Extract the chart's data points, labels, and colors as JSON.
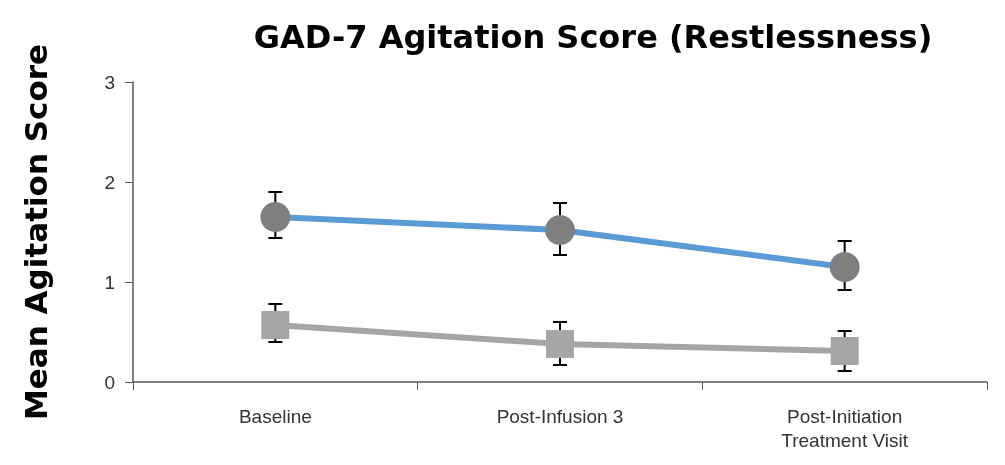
{
  "chart_data": {
    "type": "line",
    "title": "GAD-7 Agitation Score (Restlessness)",
    "ylabel": "Mean Agitation Score",
    "categories": [
      "Baseline",
      "Post-Infusion 3",
      "Post-Initiation\nTreatment Visit"
    ],
    "series": [
      {
        "color": "#5b9bd5",
        "colors": [
          "#7f7f7f",
          "#7f7f7f",
          "#7f7f7f"
        ],
        "marker": "circle",
        "values": [
          1.65,
          1.52,
          1.15
        ],
        "errors": [
          [
            1.44,
            1.9
          ],
          [
            1.27,
            1.79
          ],
          [
            0.92,
            1.41
          ]
        ]
      },
      {
        "color": "#a5a5a5",
        "colors": [
          "#a5a5a5",
          "#a5a5a5",
          "#a5a5a5"
        ],
        "marker": "square",
        "values": [
          0.57,
          0.38,
          0.31
        ],
        "errors": [
          [
            0.4,
            0.78
          ],
          [
            0.17,
            0.6
          ],
          [
            0.11,
            0.51
          ]
        ]
      }
    ],
    "ylim": [
      0,
      3
    ],
    "yticks": [
      0,
      1,
      2,
      3
    ]
  }
}
